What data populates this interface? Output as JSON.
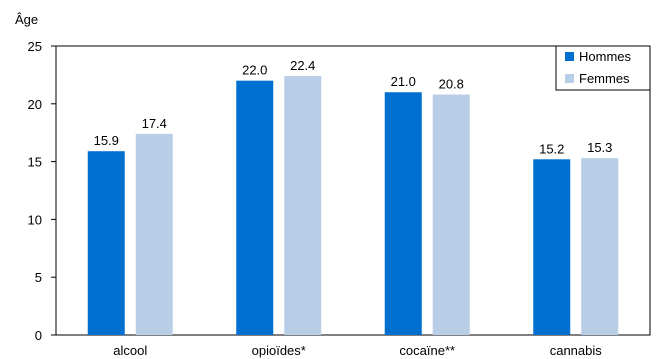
{
  "chart_data": {
    "type": "bar",
    "title": "",
    "xlabel": "",
    "ylabel": "Âge",
    "categories": [
      "alcool",
      "opioïdes*",
      "cocaïne**",
      "cannabis"
    ],
    "series": [
      {
        "name": "Hommes",
        "color": "#0070d0",
        "values": [
          15.9,
          22.0,
          21.0,
          15.2
        ]
      },
      {
        "name": "Femmes",
        "color": "#b8cde6",
        "values": [
          17.4,
          22.4,
          20.8,
          15.3
        ]
      }
    ],
    "ylim": [
      0,
      25
    ],
    "yticks": [
      0,
      5,
      10,
      15,
      20,
      25
    ],
    "data_labels": [
      [
        "15.9",
        "22.0",
        "21.0",
        "15.2"
      ],
      [
        "17.4",
        "22.4",
        "20.8",
        "15.3"
      ]
    ],
    "grid": false,
    "legend_position": "top-right"
  }
}
